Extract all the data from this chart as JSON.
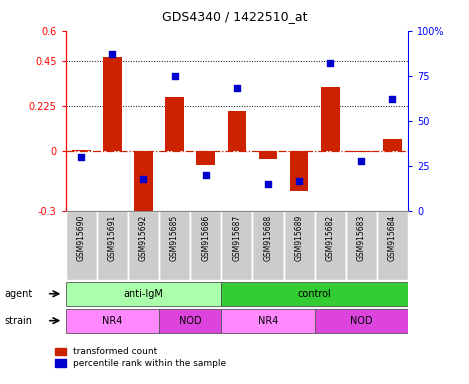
{
  "title": "GDS4340 / 1422510_at",
  "samples": [
    "GSM915690",
    "GSM915691",
    "GSM915692",
    "GSM915685",
    "GSM915686",
    "GSM915687",
    "GSM915688",
    "GSM915689",
    "GSM915682",
    "GSM915683",
    "GSM915684"
  ],
  "red_values": [
    0.005,
    0.47,
    -0.34,
    0.27,
    -0.07,
    0.2,
    -0.04,
    -0.2,
    0.32,
    -0.005,
    0.06
  ],
  "blue_values_pct": [
    30,
    87,
    18,
    75,
    20,
    68,
    15,
    17,
    82,
    28,
    62
  ],
  "ylim_left": [
    -0.3,
    0.6
  ],
  "ylim_right": [
    0,
    100
  ],
  "yticks_left": [
    -0.3,
    0.0,
    0.225,
    0.45,
    0.6
  ],
  "yticks_left_labels": [
    "-0.3",
    "0",
    "0.225",
    "0.45",
    "0.6"
  ],
  "yticks_right": [
    0,
    25,
    50,
    75,
    100
  ],
  "yticks_right_labels": [
    "0",
    "25",
    "50",
    "75",
    "100%"
  ],
  "hlines": [
    0.225,
    0.45
  ],
  "agent_groups": [
    {
      "label": "anti-IgM",
      "start": 0,
      "end": 5,
      "color": "#aaffaa"
    },
    {
      "label": "control",
      "start": 5,
      "end": 11,
      "color": "#33cc33"
    }
  ],
  "strain_groups": [
    {
      "label": "NR4",
      "start": 0,
      "end": 3,
      "color": "#ff88ff"
    },
    {
      "label": "NOD",
      "start": 3,
      "end": 5,
      "color": "#dd44dd"
    },
    {
      "label": "NR4",
      "start": 5,
      "end": 8,
      "color": "#ff88ff"
    },
    {
      "label": "NOD",
      "start": 8,
      "end": 11,
      "color": "#dd44dd"
    }
  ],
  "bar_color": "#cc2200",
  "dot_color": "#0000cc",
  "zero_line_color": "#cc2200",
  "bar_width": 0.6,
  "agent_label": "agent",
  "strain_label": "strain",
  "legend_red": "transformed count",
  "legend_blue": "percentile rank within the sample",
  "sample_box_color": "#cccccc"
}
